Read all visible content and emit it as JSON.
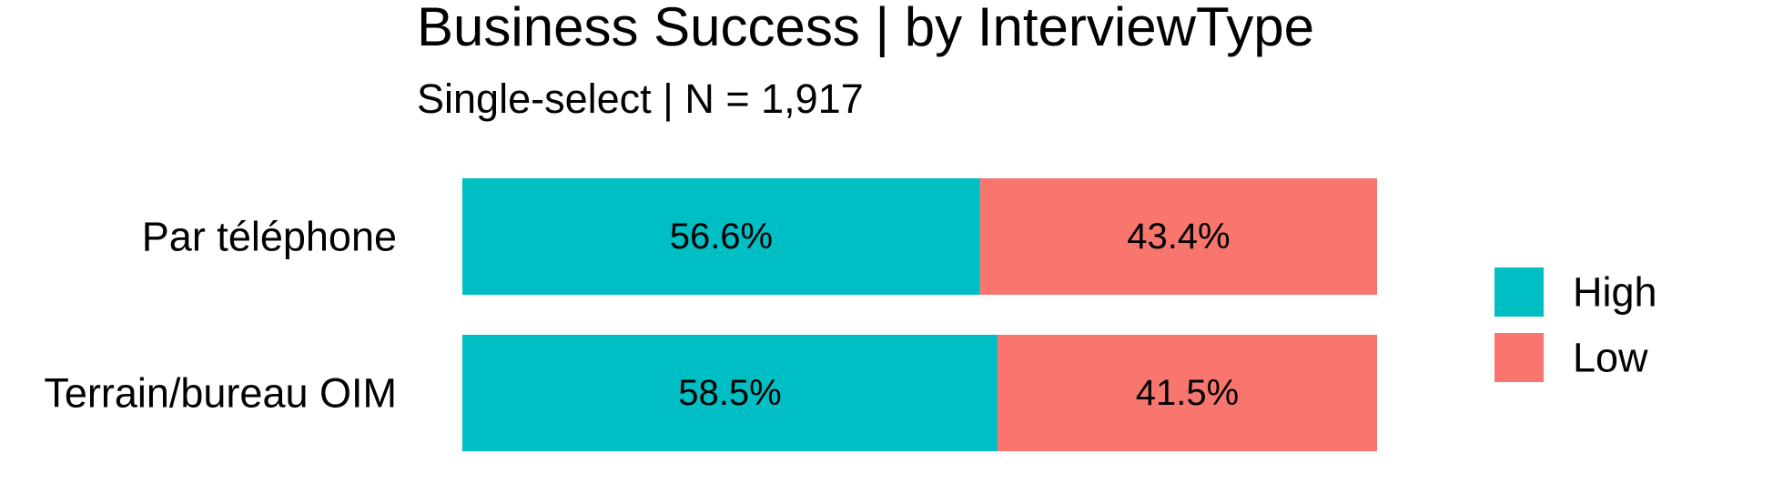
{
  "chart_data": {
    "type": "bar",
    "orientation": "horizontal",
    "stacked": true,
    "title": "Business Success | by InterviewType",
    "subtitle": "Single-select | N = 1,917",
    "xlabel": "",
    "ylabel": "",
    "xlim": [
      0,
      100
    ],
    "grid": false,
    "legend_position": "right",
    "categories": [
      "Par téléphone",
      "Terrain/bureau OIM"
    ],
    "series": [
      {
        "name": "High",
        "color": "#00BFC4",
        "values": [
          56.6,
          58.5
        ],
        "labels": [
          "56.6%",
          "58.5%"
        ]
      },
      {
        "name": "Low",
        "color": "#F8766D",
        "values": [
          43.4,
          41.5
        ],
        "labels": [
          "43.4%",
          "41.5%"
        ]
      }
    ]
  }
}
